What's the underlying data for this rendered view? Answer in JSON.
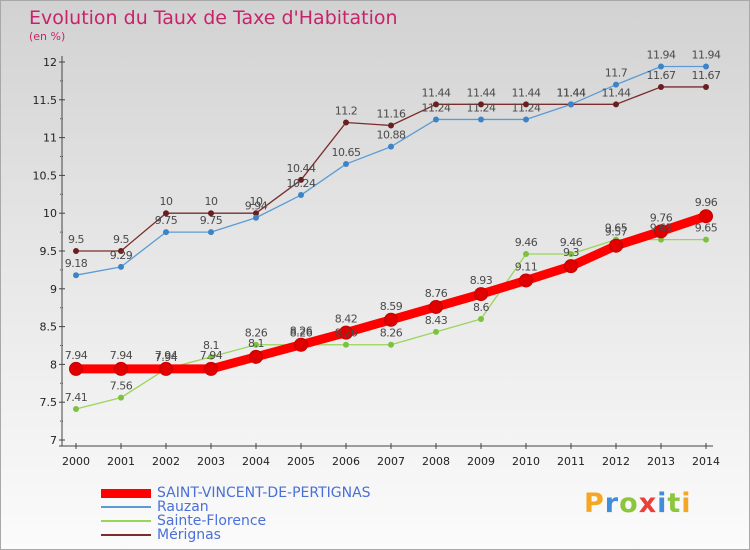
{
  "header": {
    "title": "Evolution du Taux de Taxe d'Habitation",
    "subtitle": "(en %)"
  },
  "logo": {
    "text": "Proxiti",
    "colors": [
      "#f5a623",
      "#3e8edb",
      "#8cc63e",
      "#e8403a",
      "#3e8edb",
      "#8cc63e",
      "#f5a623"
    ]
  },
  "chart_data": {
    "type": "line",
    "title": "Evolution du Taux de Taxe d'Habitation",
    "ylabel": "(en %)",
    "xlabel": "",
    "x": [
      "2000",
      "2001",
      "2002",
      "2003",
      "2004",
      "2005",
      "2006",
      "2007",
      "2008",
      "2009",
      "2010",
      "2011",
      "2012",
      "2013",
      "2014"
    ],
    "ylim": [
      7,
      12
    ],
    "yticks": [
      "7",
      "7.5",
      "8",
      "8.5",
      "9",
      "9.5",
      "10",
      "10.5",
      "11",
      "11.5",
      "12"
    ],
    "grid": false,
    "legend_position": "bottom-left",
    "series": [
      {
        "name": "SAINT-VINCENT-DE-PERTIGNAS",
        "color": "#ff0000",
        "values": [
          7.94,
          7.94,
          7.94,
          7.94,
          8.1,
          8.26,
          8.42,
          8.59,
          8.76,
          8.93,
          9.11,
          9.3,
          9.57,
          9.76,
          9.96
        ],
        "labels": [
          "7.94",
          "7.94",
          "7.94",
          "7.94",
          "8.1",
          "8.26",
          "8.42",
          "8.59",
          "8.76",
          "8.93",
          "9.11",
          "9.3",
          "9.57",
          "9.76",
          "9.96"
        ]
      },
      {
        "name": "Rauzan",
        "color": "#5b9bd5",
        "values": [
          9.18,
          9.29,
          9.75,
          9.75,
          9.94,
          10.24,
          10.65,
          10.88,
          11.24,
          11.24,
          11.24,
          11.44,
          11.7,
          11.94,
          11.94
        ],
        "labels": [
          "9.18",
          "9.29",
          "9.75",
          "9.75",
          "9.94",
          "10.24",
          "10.65",
          "10.88",
          "11.24",
          "11.24",
          "11.24",
          "11.44",
          "11.7",
          "11.94",
          "11.94"
        ]
      },
      {
        "name": "Sainte-Florence",
        "color": "#9ad55a",
        "values": [
          7.41,
          7.56,
          7.94,
          8.1,
          8.26,
          8.26,
          8.26,
          8.26,
          8.43,
          8.6,
          9.46,
          9.46,
          9.65,
          9.65,
          9.65
        ],
        "labels": [
          "7.41",
          "7.56",
          "7.94",
          "8.1",
          "8.26",
          "8.26",
          "8.26",
          "8.26",
          "8.43",
          "8.6",
          "9.46",
          "9.46",
          "9.65",
          "9.65",
          "9.65"
        ]
      },
      {
        "name": "Mérignas",
        "color": "#7b2c2c",
        "values": [
          9.5,
          9.5,
          10,
          10,
          10,
          10.44,
          11.2,
          11.16,
          11.44,
          11.44,
          11.44,
          11.44,
          11.44,
          11.67,
          11.67
        ],
        "labels": [
          "9.5",
          "9.5",
          "10",
          "10",
          "10",
          "10.44",
          "11.2",
          "11.16",
          "11.44",
          "11.44",
          "11.44",
          "11.44",
          "11.44",
          "11.67",
          "11.67"
        ]
      }
    ]
  }
}
